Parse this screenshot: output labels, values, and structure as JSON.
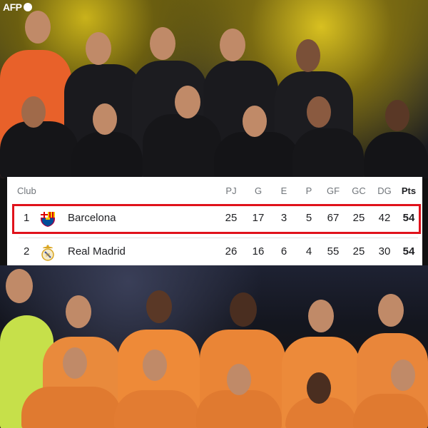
{
  "watermark": "AFP",
  "table": {
    "headers": [
      "Club",
      "PJ",
      "G",
      "E",
      "P",
      "GF",
      "GC",
      "DG",
      "Pts"
    ],
    "rows": [
      {
        "rank": "1",
        "club": "Barcelona",
        "crest": "fc-barcelona-crest",
        "values": [
          "25",
          "17",
          "3",
          "5",
          "67",
          "25",
          "42",
          "54"
        ],
        "highlighted": true
      },
      {
        "rank": "2",
        "club": "Real Madrid",
        "crest": "real-madrid-crest",
        "values": [
          "26",
          "16",
          "6",
          "4",
          "55",
          "25",
          "30",
          "54"
        ],
        "highlighted": false
      }
    ],
    "highlight_color": "#e0121b"
  }
}
